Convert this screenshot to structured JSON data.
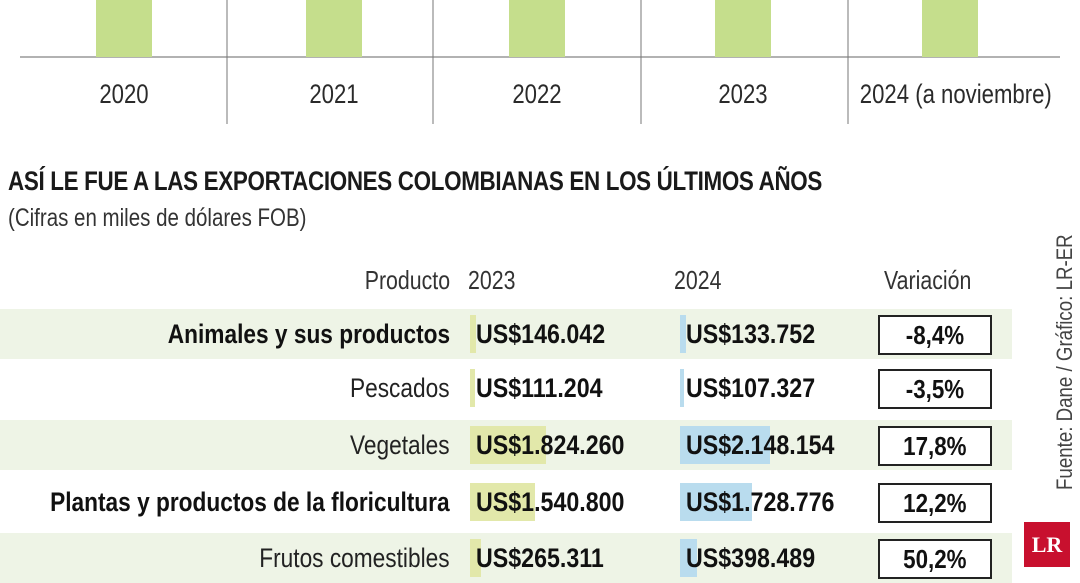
{
  "colors": {
    "top_bar": "#c5de8c",
    "bar_2023": "#e2e8aa",
    "bar_2024": "#b9dcee",
    "row_shade": "#eef4e6",
    "logo_bg": "#c8102e"
  },
  "chart_data": [
    {
      "type": "bar",
      "categories": [
        "2020",
        "2021",
        "2022",
        "2023",
        "2024 (a noviembre)"
      ],
      "series": [],
      "title": "",
      "xlabel": "",
      "ylabel": ""
    },
    {
      "type": "table",
      "title": "ASÍ LE FUE A LAS EXPORTACIONES COLOMBIANAS EN LOS ÚLTIMOS AÑOS",
      "subtitle": "(Cifras en miles de dólares FOB)",
      "columns": [
        "Producto",
        "2023",
        "2024",
        "Variación"
      ],
      "rows": [
        {
          "producto": "Animales y sus productos",
          "v2023": 146042,
          "v2024": 133752,
          "v2023_label": "US$146.042",
          "v2024_label": "US$133.752",
          "variacion": "-8,4%",
          "bold": true
        },
        {
          "producto": "Pescados",
          "v2023": 111204,
          "v2024": 107327,
          "v2023_label": "US$111.204",
          "v2024_label": "US$107.327",
          "variacion": "-3,5%",
          "bold": false
        },
        {
          "producto": "Vegetales",
          "v2023": 1824260,
          "v2024": 2148154,
          "v2023_label": "US$1.824.260",
          "v2024_label": "US$2.148.154",
          "variacion": "17,8%",
          "bold": false
        },
        {
          "producto": "Plantas y productos de la floricultura",
          "v2023": 1540800,
          "v2024": 1728776,
          "v2023_label": "US$1.540.800",
          "v2024_label": "US$1.728.776",
          "variacion": "12,2%",
          "bold": true
        },
        {
          "producto": "Frutos comestibles",
          "v2023": 265311,
          "v2024": 398489,
          "v2023_label": "US$265.311",
          "v2024_label": "US$398.489",
          "variacion": "50,2%",
          "bold": false
        }
      ]
    }
  ],
  "source": "Fuente: Dane / Gráfico: LR-ER",
  "logo": "LR"
}
